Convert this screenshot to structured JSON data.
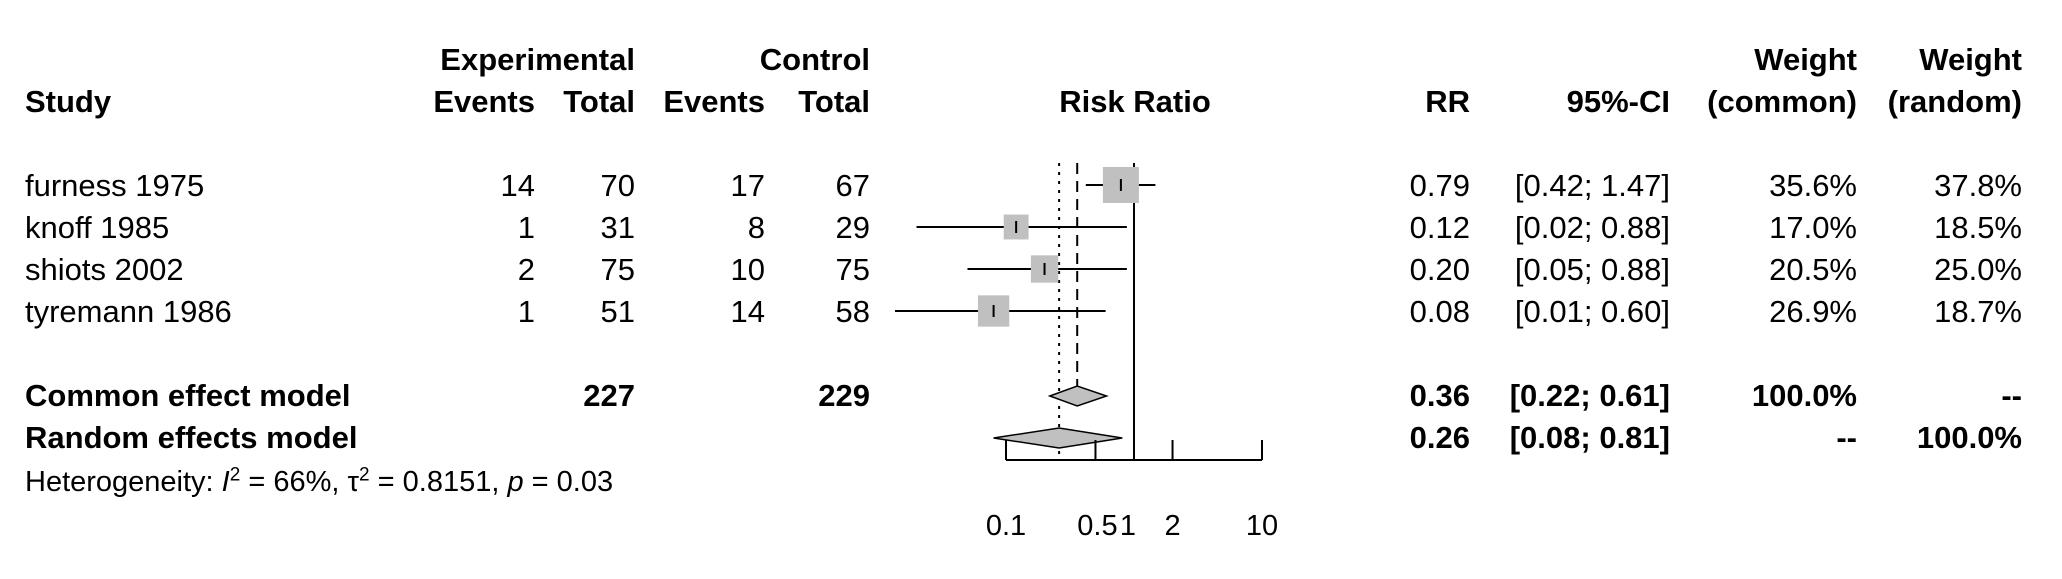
{
  "headers": {
    "study": "Study",
    "experimental": "Experimental",
    "control": "Control",
    "events": "Events",
    "total": "Total",
    "risk_ratio": "Risk Ratio",
    "rr": "RR",
    "ci": "95%-CI",
    "weight": "Weight",
    "common": "(common)",
    "random": "(random)"
  },
  "studies": [
    {
      "name": "furness 1975",
      "e_events": "14",
      "e_total": "70",
      "c_events": "17",
      "c_total": "67",
      "rr": "0.79",
      "ci": "[0.42; 1.47]",
      "w_common": "35.6%",
      "w_random": "37.8%"
    },
    {
      "name": "knoff 1985",
      "e_events": "1",
      "e_total": "31",
      "c_events": "8",
      "c_total": "29",
      "rr": "0.12",
      "ci": "[0.02; 0.88]",
      "w_common": "17.0%",
      "w_random": "18.5%"
    },
    {
      "name": "shiots 2002",
      "e_events": "2",
      "e_total": "75",
      "c_events": "10",
      "c_total": "75",
      "rr": "0.20",
      "ci": "[0.05; 0.88]",
      "w_common": "20.5%",
      "w_random": "25.0%"
    },
    {
      "name": "tyremann 1986",
      "e_events": "1",
      "e_total": "51",
      "c_events": "14",
      "c_total": "58",
      "rr": "0.08",
      "ci": "[0.01; 0.60]",
      "w_common": "26.9%",
      "w_random": "18.7%"
    }
  ],
  "models": {
    "common": {
      "name": "Common effect model",
      "e_total": "227",
      "c_total": "229",
      "rr": "0.36",
      "ci": "[0.22; 0.61]",
      "w_common": "100.0%",
      "w_random": "--"
    },
    "random": {
      "name": "Random effects model",
      "rr": "0.26",
      "ci": "[0.08; 0.81]",
      "w_common": "--",
      "w_random": "100.0%"
    }
  },
  "heterogeneity": {
    "prefix": "Heterogeneity: ",
    "i_symbol": "I",
    "i_sup": "2",
    "i_value": " = 66%, ",
    "tau_symbol": "τ",
    "tau_sup": "2",
    "tau_value": " = 0.8151, ",
    "p_symbol": "p",
    "p_value": " = 0.03"
  },
  "chart_data": {
    "type": "forest",
    "x_scale": "log",
    "xlim": [
      0.1,
      10
    ],
    "ticks": [
      0.1,
      0.5,
      1,
      2,
      10
    ],
    "tick_labels": [
      "0.1",
      "0.5",
      "1",
      "2",
      "10"
    ],
    "reference_line": 1,
    "common_effect_line": 0.36,
    "random_effect_line": 0.26,
    "studies": [
      {
        "name": "furness 1975",
        "rr": 0.79,
        "lower": 0.42,
        "upper": 1.47,
        "weight": 35.6
      },
      {
        "name": "knoff 1985",
        "rr": 0.12,
        "lower": 0.02,
        "upper": 0.88,
        "weight": 17.0
      },
      {
        "name": "shiots 2002",
        "rr": 0.2,
        "lower": 0.05,
        "upper": 0.88,
        "weight": 20.5
      },
      {
        "name": "tyremann 1986",
        "rr": 0.08,
        "lower": 0.01,
        "upper": 0.6,
        "weight": 26.9
      }
    ],
    "diamonds": [
      {
        "name": "Common effect model",
        "rr": 0.36,
        "lower": 0.22,
        "upper": 0.61
      },
      {
        "name": "Random effects model",
        "rr": 0.26,
        "lower": 0.08,
        "upper": 0.81
      }
    ],
    "colors": {
      "square": "#c0c0c0",
      "diamond": "#c0c0c0",
      "line": "#000000"
    }
  }
}
